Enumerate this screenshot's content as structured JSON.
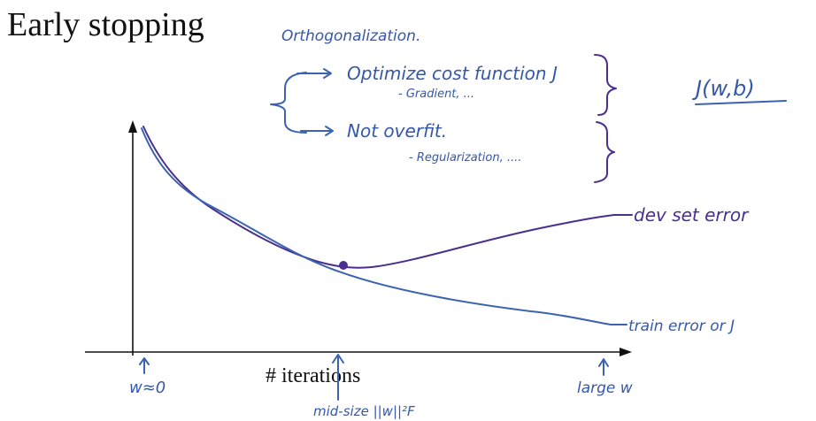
{
  "slide": {
    "title": "Early stopping",
    "x_axis_label": "# iterations"
  },
  "annotations": {
    "header": "Orthogonalization.",
    "item_1": "Optimize cost function J",
    "item_1_sub": "- Gradient, ...",
    "item_2": "Not overfit.",
    "item_2_sub": "- Regularization, ....",
    "objective": "J(w,b)",
    "dev_curve_label": "dev set error",
    "train_curve_label": "train error or J",
    "w_small": "w≈0",
    "w_mid": "mid-size ||w||²F",
    "w_large": "large w"
  },
  "colors": {
    "ink_blue": "#3b63b0",
    "ink_purple": "#4a2f8f",
    "text": "#111111"
  }
}
